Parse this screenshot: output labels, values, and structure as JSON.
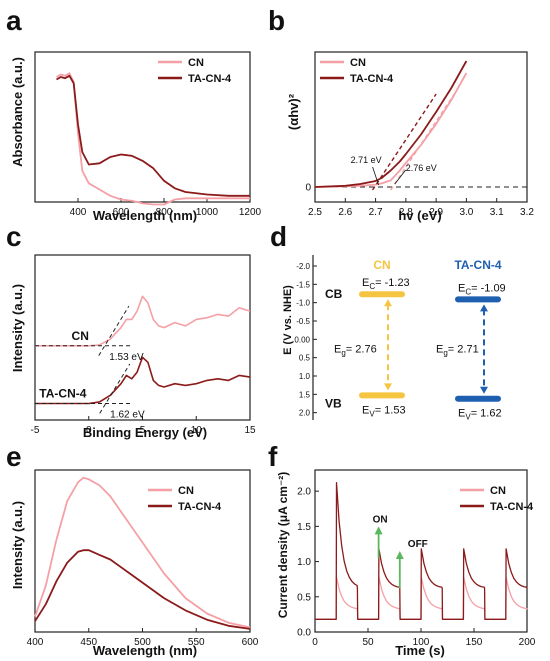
{
  "colors": {
    "cn": "#f4a0a6",
    "tacn4": "#8b1a1a",
    "gold": "#f5c542",
    "blue": "#1f5fb0",
    "axis": "#222222"
  },
  "chart_data": [
    {
      "id": "a",
      "panel_label": "a",
      "type": "line",
      "xlabel": "Wavelength (nm)",
      "ylabel": "Absorbance (a.u.)",
      "xlim": [
        200,
        1200
      ],
      "ylim": [
        0,
        1.2
      ],
      "xticks": [
        400,
        600,
        800,
        1000,
        1200
      ],
      "yticks": [],
      "legend": "top-right",
      "series": [
        {
          "name": "CN",
          "color": "#f4a0a6",
          "x": [
            300,
            320,
            340,
            360,
            380,
            400,
            420,
            450,
            500,
            550,
            600,
            650,
            700,
            750,
            800,
            850,
            900,
            1000,
            1100,
            1200
          ],
          "y": [
            1.0,
            1.02,
            1.01,
            1.03,
            0.96,
            0.55,
            0.25,
            0.15,
            0.1,
            0.05,
            0.02,
            0.01,
            -0.01,
            -0.02,
            -0.02,
            0.02,
            0.03,
            0.03,
            0.03,
            0.03
          ]
        },
        {
          "name": "TA-CN-4",
          "color": "#8b1a1a",
          "x": [
            300,
            320,
            340,
            360,
            380,
            400,
            420,
            450,
            500,
            550,
            600,
            650,
            700,
            750,
            800,
            850,
            900,
            1000,
            1100,
            1200
          ],
          "y": [
            0.98,
            1.0,
            0.99,
            1.01,
            0.95,
            0.62,
            0.4,
            0.3,
            0.31,
            0.36,
            0.38,
            0.37,
            0.33,
            0.27,
            0.17,
            0.11,
            0.08,
            0.06,
            0.05,
            0.05
          ]
        }
      ]
    },
    {
      "id": "b",
      "panel_label": "b",
      "type": "line",
      "xlabel": "hv (eV)",
      "ylabel": "(αhv)²",
      "xlim": [
        2.5,
        3.2
      ],
      "ylim": [
        -0.5,
        4.5
      ],
      "xticks": [
        2.5,
        2.6,
        2.7,
        2.8,
        2.9,
        3.0,
        3.1,
        3.2
      ],
      "yticks": [
        0
      ],
      "legend": "top-left",
      "series": [
        {
          "name": "CN",
          "color": "#f4a0a6",
          "x": [
            2.5,
            2.6,
            2.65,
            2.7,
            2.72,
            2.75,
            2.78,
            2.8,
            2.85,
            2.9,
            2.95,
            3.0
          ],
          "y": [
            0.0,
            0.02,
            0.04,
            0.08,
            0.12,
            0.22,
            0.55,
            0.8,
            1.4,
            2.1,
            2.9,
            3.8
          ]
        },
        {
          "name": "TA-CN-4",
          "color": "#8b1a1a",
          "x": [
            2.5,
            2.6,
            2.65,
            2.7,
            2.72,
            2.75,
            2.78,
            2.8,
            2.85,
            2.9,
            2.95,
            3.0
          ],
          "y": [
            0.0,
            0.04,
            0.1,
            0.2,
            0.3,
            0.55,
            0.85,
            1.1,
            1.75,
            2.5,
            3.3,
            4.2
          ]
        }
      ],
      "tangents": [
        {
          "color": "#f4a0a6",
          "x": [
            2.75,
            2.96
          ],
          "y": [
            -0.1,
            3.1
          ]
        },
        {
          "color": "#8b1a1a",
          "x": [
            2.69,
            2.9
          ],
          "y": [
            -0.1,
            3.1
          ]
        }
      ],
      "baseline_y": 0,
      "annotations": [
        {
          "text": "2.71 eV",
          "at": [
            2.71,
            0
          ]
        },
        {
          "text": "2.76 eV",
          "at": [
            2.76,
            0
          ]
        }
      ]
    },
    {
      "id": "c",
      "panel_label": "c",
      "type": "line",
      "xlabel": "Binding Energy (eV)",
      "ylabel": "Intensity (a.u.)",
      "xlim": [
        -5,
        15
      ],
      "ylim": [
        0,
        10
      ],
      "xticks": [
        -5,
        0,
        5,
        10,
        15
      ],
      "yticks": [],
      "series": [
        {
          "name": "CN",
          "color": "#f4a0a6",
          "offset": 4.5,
          "x": [
            -5,
            0,
            1,
            2,
            3,
            3.5,
            4,
            4.5,
            5,
            5.5,
            6,
            6.5,
            7,
            8,
            9,
            10,
            11,
            12,
            13,
            14,
            15
          ],
          "y": [
            0.0,
            0.0,
            0.05,
            0.4,
            1.1,
            1.6,
            1.6,
            2.1,
            3.0,
            2.6,
            1.6,
            1.2,
            1.1,
            1.4,
            1.2,
            1.6,
            1.7,
            1.9,
            1.8,
            2.3,
            2.1
          ]
        },
        {
          "name": "TA-CN-4",
          "color": "#8b1a1a",
          "offset": 1.0,
          "x": [
            -5,
            0,
            1,
            2,
            3,
            3.5,
            4,
            4.5,
            5,
            5.5,
            6,
            6.5,
            7,
            8,
            9,
            10,
            11,
            12,
            13,
            14,
            15
          ],
          "y": [
            0.0,
            0.0,
            0.1,
            0.5,
            1.2,
            1.7,
            1.5,
            1.9,
            2.8,
            2.5,
            1.4,
            1.1,
            1.0,
            1.2,
            1.1,
            1.2,
            1.4,
            1.5,
            1.4,
            1.7,
            1.6
          ]
        }
      ],
      "labels": [
        {
          "text": "CN",
          "y": 4.5
        },
        {
          "text": "TA-CN-4",
          "y": 1.0
        }
      ],
      "annotations": [
        {
          "text": "1.53 eV",
          "at": [
            1.53,
            4.5
          ]
        },
        {
          "text": "1.62 eV",
          "at": [
            1.62,
            1.0
          ]
        }
      ]
    },
    {
      "id": "d",
      "panel_label": "d",
      "type": "diagram",
      "ylabel": "E (V vs. NHE)",
      "ylim": [
        -2.3,
        2.2
      ],
      "yticks": [
        -2.0,
        -1.5,
        -1.0,
        -0.5,
        0.0,
        0.5,
        1.0,
        1.5,
        2.0
      ],
      "yticklabels": [
        "-2.0",
        "-1.5",
        "-1.0",
        "-0.5",
        "0.00",
        "0.5",
        "1.0",
        "1.5",
        "2.0"
      ],
      "row_labels": [
        {
          "text": "CB",
          "y": -1.23
        },
        {
          "text": "VB",
          "y": 1.53
        }
      ],
      "materials": [
        {
          "name": "CN",
          "color": "#f5c542",
          "ec": -1.23,
          "ev": 1.53,
          "ec_text": "= -1.23",
          "ev_text": "= 1.53",
          "eg_text": "= 2.76"
        },
        {
          "name": "TA-CN-4",
          "color": "#1f5fb0",
          "ec": -1.09,
          "ev": 1.62,
          "ec_text": "= -1.09",
          "ev_text": "= 1.62",
          "eg_text": "= 2.71"
        }
      ]
    },
    {
      "id": "e",
      "panel_label": "e",
      "type": "line",
      "xlabel": "Wavelength (nm)",
      "ylabel": "Intensity (a.u.)",
      "xlim": [
        400,
        600
      ],
      "ylim": [
        0,
        1.05
      ],
      "xticks": [
        400,
        450,
        500,
        550,
        600
      ],
      "yticks": [],
      "legend": "top-right",
      "series": [
        {
          "name": "CN",
          "color": "#f4a0a6",
          "x": [
            400,
            410,
            420,
            430,
            440,
            445,
            450,
            460,
            470,
            480,
            500,
            520,
            540,
            560,
            580,
            600
          ],
          "y": [
            0.1,
            0.3,
            0.6,
            0.85,
            0.97,
            1.0,
            0.99,
            0.95,
            0.88,
            0.78,
            0.58,
            0.38,
            0.22,
            0.12,
            0.06,
            0.03
          ]
        },
        {
          "name": "TA-CN-4",
          "color": "#8b1a1a",
          "x": [
            400,
            410,
            420,
            430,
            440,
            445,
            450,
            460,
            470,
            480,
            500,
            520,
            540,
            560,
            580,
            600
          ],
          "y": [
            0.07,
            0.18,
            0.33,
            0.45,
            0.52,
            0.53,
            0.53,
            0.5,
            0.47,
            0.42,
            0.32,
            0.22,
            0.14,
            0.08,
            0.04,
            0.02
          ]
        }
      ]
    },
    {
      "id": "f",
      "panel_label": "f",
      "type": "line",
      "xlabel": "Time (s)",
      "ylabel": "Current density (μA cm⁻²)",
      "xlim": [
        0,
        200
      ],
      "ylim": [
        0,
        2.3
      ],
      "xticks": [
        0,
        50,
        100,
        150,
        200
      ],
      "yticks": [
        0.0,
        0.5,
        1.0,
        1.5,
        2.0
      ],
      "yticklabels": [
        "0.0",
        "0.5",
        "1.0",
        "1.5",
        "2.0"
      ],
      "legend": "top-right",
      "on_times": [
        20,
        60,
        100,
        140,
        180
      ],
      "off_times": [
        40,
        80,
        120,
        160,
        200
      ],
      "series": [
        {
          "name": "CN",
          "color": "#f4a0a6",
          "dark": 0.18,
          "spike": 0.78,
          "plateau": 0.32
        },
        {
          "name": "TA-CN-4",
          "color": "#8b1a1a",
          "dark": 0.18,
          "spike": 2.12,
          "plateau": 0.62,
          "spike_later": 1.18
        }
      ],
      "annotations": [
        {
          "text": "ON",
          "color": "#5cb85c",
          "at": [
            60,
            1.05
          ],
          "to": [
            60,
            1.5
          ]
        },
        {
          "text": "OFF",
          "color": "#5cb85c",
          "at": [
            80,
            0.62
          ],
          "to": [
            80,
            1.15
          ]
        }
      ]
    }
  ]
}
